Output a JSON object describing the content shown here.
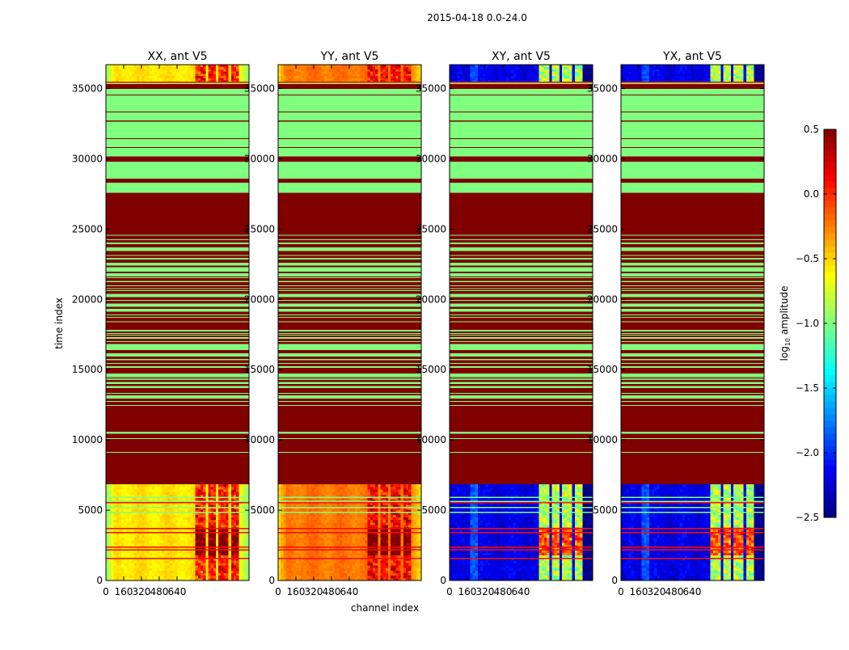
{
  "chart_data": {
    "type": "heatmap",
    "title": "2015-04-18 0.0-24.0",
    "xlabel": "channel index",
    "ylabel": "time index",
    "xlim": [
      0,
      1288
    ],
    "ylim": [
      0,
      36700
    ],
    "xticks": [
      0,
      160,
      320,
      480,
      640
    ],
    "xtick_labels": [
      "0",
      "160",
      "320",
      "480",
      "640"
    ],
    "yticks": [
      0,
      5000,
      10000,
      15000,
      20000,
      25000,
      30000,
      35000
    ],
    "ytick_labels": [
      "0",
      "5000",
      "10000",
      "15000",
      "20000",
      "25000",
      "30000",
      "35000"
    ],
    "colorbar": {
      "label_main": "log",
      "label_sub": "10",
      "label_rest": " amplitude",
      "range": [
        -2.5,
        0.5
      ],
      "colormap": "jet",
      "ticks": [
        0.5,
        0.0,
        -0.5,
        -1.0,
        -1.5,
        -2.0,
        -2.5
      ],
      "tick_labels": [
        "0.5",
        "0.0",
        "−0.5",
        "−1.0",
        "−1.5",
        "−2.0",
        "−2.5"
      ]
    },
    "flagged_value_high": 0.5,
    "flagged_value_green": -1.0,
    "data_regions": [
      [
        0,
        6850
      ],
      [
        35442,
        36700
      ]
    ],
    "background_segments": [
      {
        "range": [
          6850,
          27596
        ],
        "value": 0.5
      },
      {
        "range": [
          27596,
          35442
        ],
        "value": -1.0
      }
    ],
    "green_stripes": [
      [
        24557,
        24600
      ],
      [
        24212,
        24270
      ],
      [
        23942,
        24039
      ],
      [
        23442,
        23712
      ],
      [
        23115,
        23155
      ],
      [
        22827,
        22942
      ],
      [
        22404,
        22596
      ],
      [
        21981,
        22289
      ],
      [
        21635,
        21866
      ],
      [
        21519,
        21559
      ],
      [
        21212,
        21308
      ],
      [
        20961,
        21001
      ],
      [
        20749,
        20789
      ],
      [
        20615,
        20655
      ],
      [
        20173,
        20385
      ],
      [
        19923,
        19963
      ],
      [
        19481,
        19712
      ],
      [
        19135,
        19327
      ],
      [
        18884,
        18924
      ],
      [
        18711,
        18751
      ],
      [
        18403,
        18443
      ],
      [
        17731,
        17827
      ],
      [
        17576,
        17616
      ],
      [
        17442,
        17482
      ],
      [
        17212,
        17308
      ],
      [
        16999,
        17039
      ],
      [
        16404,
        16827
      ],
      [
        15942,
        16154
      ],
      [
        15673,
        15770
      ],
      [
        15423,
        15463
      ],
      [
        15135,
        15250
      ],
      [
        14481,
        14712
      ],
      [
        14365,
        14405
      ],
      [
        14269,
        14309
      ],
      [
        13981,
        14135
      ],
      [
        13692,
        13846
      ],
      [
        13307,
        13347
      ],
      [
        12943,
        13173
      ],
      [
        12730,
        12770
      ],
      [
        12442,
        12482
      ],
      [
        10443,
        10577
      ],
      [
        10076,
        10116
      ],
      [
        9115,
        9155
      ]
    ],
    "dark_stripes": [
      [
        28306,
        28577
      ],
      [
        29810,
        30175
      ],
      [
        30789,
        30829
      ],
      [
        31424,
        31464
      ],
      [
        32650,
        32730
      ],
      [
        33328,
        33368
      ],
      [
        34540,
        34580
      ],
      [
        34971,
        35318
      ]
    ],
    "data_lines": [
      {
        "t": 5923,
        "value": -1.0
      },
      {
        "t": 5615,
        "value": -1.0
      },
      {
        "t": 5538,
        "value": 0.1
      },
      {
        "t": 5192,
        "value": -1.0
      },
      {
        "t": 4846,
        "value": -1.0
      },
      {
        "t": 3696,
        "value": 0.1
      },
      {
        "t": 3408,
        "value": 0.1
      },
      {
        "t": 2369,
        "value": 0.1
      },
      {
        "t": 2177,
        "value": 0.1
      },
      {
        "t": 1579,
        "value": 0.1
      },
      {
        "t": 35442,
        "value": 0.1
      }
    ],
    "rfi_channel_bands": [
      [
        812,
        896
      ],
      [
        918,
        997
      ],
      [
        1016,
        1105
      ],
      [
        1123,
        1203
      ]
    ],
    "burst_time_range": [
      1800,
      3750
    ],
    "panels": [
      {
        "title": "XX, ant V5",
        "base": -0.55,
        "edge_drop": 0.45,
        "rfi": 0.05,
        "burst": 0.5,
        "noise": 0.12,
        "rfi_noise": 0.5,
        "stripe": 0
      },
      {
        "title": "YY, ant V5",
        "base": -0.22,
        "edge_drop": 0.35,
        "rfi": 0.1,
        "burst": 0.5,
        "noise": 0.12,
        "rfi_noise": 0.45,
        "stripe": 0
      },
      {
        "title": "XY, ant V5",
        "base": -2.2,
        "edge_drop": 0.1,
        "rfi": -0.85,
        "burst": 0.7,
        "noise": 0.25,
        "rfi_noise": 0.5,
        "stripe": 0.35
      },
      {
        "title": "YX, ant V5",
        "base": -2.2,
        "edge_drop": 0.1,
        "rfi": -0.85,
        "burst": 0.7,
        "noise": 0.25,
        "rfi_noise": 0.5,
        "stripe": 0.35
      }
    ]
  }
}
